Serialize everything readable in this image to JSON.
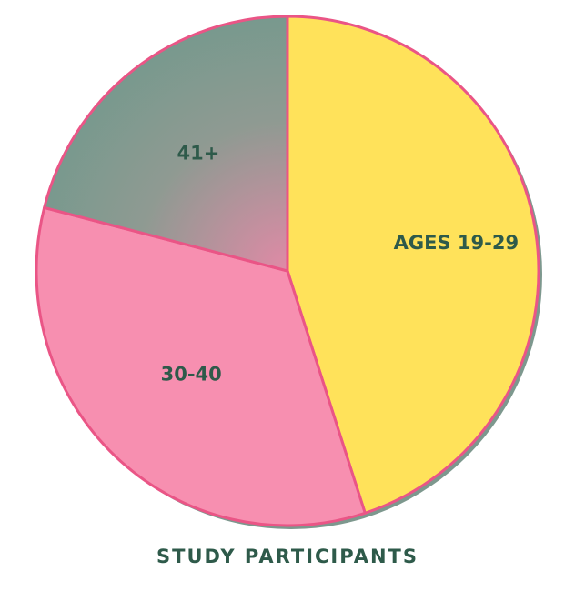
{
  "chart_data": {
    "type": "pie",
    "title": "STUDY PARTICIPANTS",
    "categories": [
      "AGES 19-29",
      "30-40",
      "41+"
    ],
    "values": [
      45,
      34,
      21
    ],
    "unit": "percent",
    "colors": {
      "AGES 19-29": "#ffe25a",
      "30-40": "#f78fb0",
      "41+": "#7a9e92",
      "outline": "#ea5586",
      "label_text": "#2e5a4a"
    },
    "start_angle_deg": 0,
    "direction": "clockwise-from-top",
    "legend": "none",
    "grid": false
  }
}
